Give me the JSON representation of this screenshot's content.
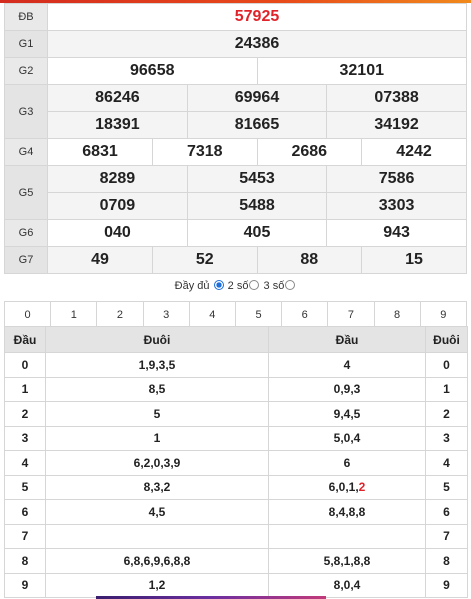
{
  "results": {
    "db": {
      "label": "ĐB",
      "values": [
        "57925"
      ]
    },
    "g1": {
      "label": "G1",
      "values": [
        "24386"
      ]
    },
    "g2": {
      "label": "G2",
      "values": [
        "96658",
        "32101"
      ]
    },
    "g3": {
      "label": "G3",
      "row1": [
        "86246",
        "69964",
        "07388"
      ],
      "row2": [
        "18391",
        "81665",
        "34192"
      ]
    },
    "g4": {
      "label": "G4",
      "values": [
        "6831",
        "7318",
        "2686",
        "4242"
      ]
    },
    "g5": {
      "label": "G5",
      "row1": [
        "8289",
        "5453",
        "7586"
      ],
      "row2": [
        "0709",
        "5488",
        "3303"
      ]
    },
    "g6": {
      "label": "G6",
      "values": [
        "040",
        "405",
        "943"
      ]
    },
    "g7": {
      "label": "G7",
      "values": [
        "49",
        "52",
        "88",
        "15"
      ]
    }
  },
  "mode": {
    "prefix": "Đầy đủ",
    "option2": "2 số",
    "option3": "3 số",
    "selected": "full"
  },
  "digit_filter": [
    "0",
    "1",
    "2",
    "3",
    "4",
    "5",
    "6",
    "7",
    "8",
    "9"
  ],
  "loto": {
    "headers": [
      "Đầu",
      "Đuôi",
      "Đầu",
      "Đuôi"
    ],
    "rows": [
      {
        "dau": "0",
        "duoi": "1,9,3,5",
        "dau2": "4",
        "duoi2": "0"
      },
      {
        "dau": "1",
        "duoi": "8,5",
        "dau2": "0,9,3",
        "duoi2": "1"
      },
      {
        "dau": "2",
        "duoi": "5",
        "dau2": "9,4,5",
        "duoi2": "2"
      },
      {
        "dau": "3",
        "duoi": "1",
        "dau2": "5,0,4",
        "duoi2": "3"
      },
      {
        "dau": "4",
        "duoi": "6,2,0,3,9",
        "dau2": "6",
        "duoi2": "4"
      },
      {
        "dau": "5",
        "duoi": "8,3,2",
        "dau2": "6,0,1,",
        "dau2_special": "2",
        "duoi2": "5"
      },
      {
        "dau": "6",
        "duoi": "4,5",
        "dau2": "8,4,8,8",
        "duoi2": "6"
      },
      {
        "dau": "7",
        "duoi": "",
        "dau2": "",
        "duoi2": "7"
      },
      {
        "dau": "8",
        "duoi": "6,8,6,9,6,8,8",
        "dau2": "5,8,1,8,8",
        "duoi2": "8"
      },
      {
        "dau": "9",
        "duoi": "1,2",
        "dau2": "8,0,4",
        "duoi2": "9"
      }
    ]
  },
  "colors": {
    "highlight": "#e0232a",
    "label_bg": "#e9e9e9",
    "border": "#d6d6d6"
  }
}
